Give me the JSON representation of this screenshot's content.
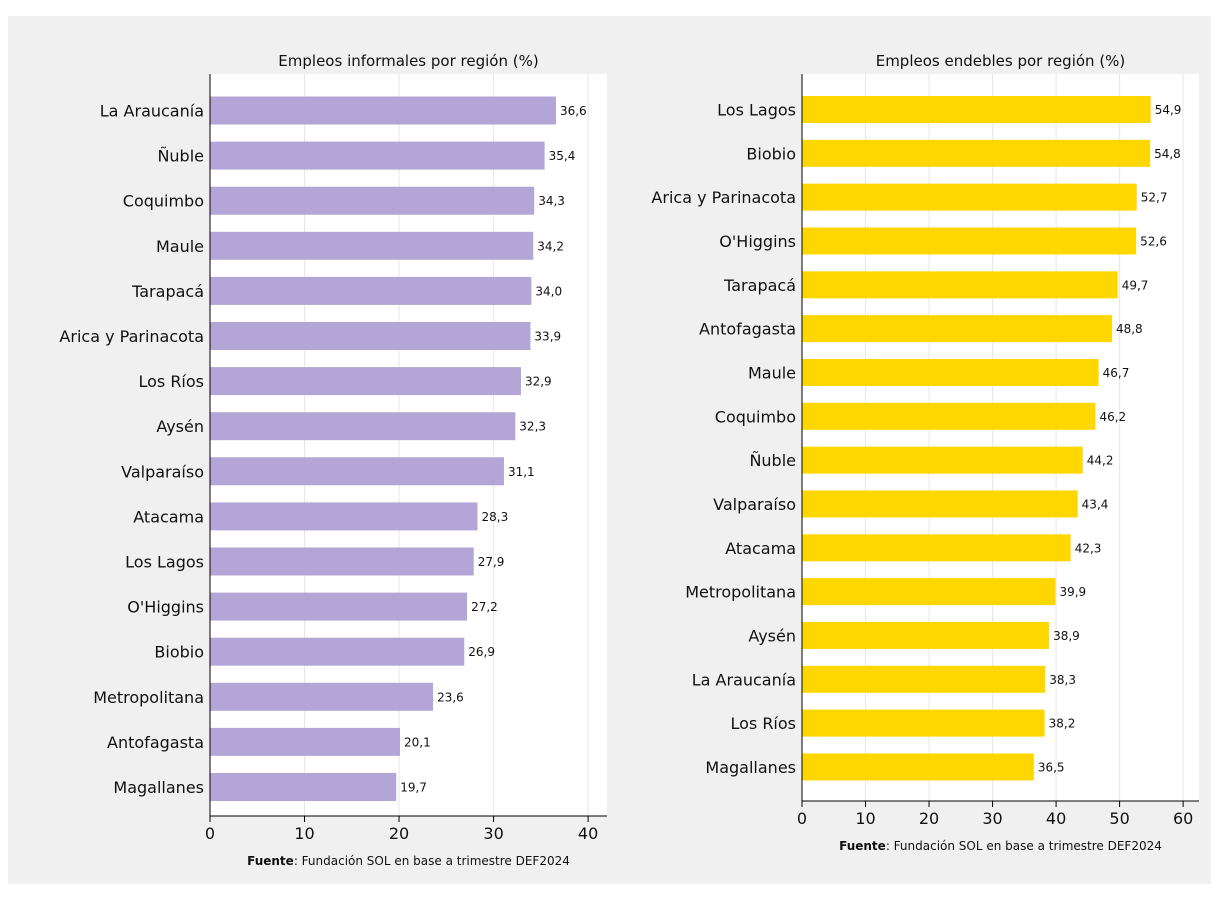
{
  "source_note": {
    "bold": "Fuente",
    "text": ": Fundación SOL en base a trimestre DEF2024"
  },
  "chart_data": [
    {
      "type": "bar",
      "orientation": "horizontal",
      "title": "Empleos informales por región (%)",
      "xlabel": "",
      "ylabel": "",
      "color": "#b3a6d6",
      "xlim": [
        0,
        42
      ],
      "xticks": [
        0,
        10,
        20,
        30,
        40
      ],
      "grid": true,
      "categories": [
        "La Araucanía",
        "Ñuble",
        "Coquimbo",
        "Maule",
        "Tarapacá",
        "Arica y Parinacota",
        "Los Ríos",
        "Aysén",
        "Valparaíso",
        "Atacama",
        "Los Lagos",
        "O'Higgins",
        "Biobio",
        "Metropolitana",
        "Antofagasta",
        "Magallanes"
      ],
      "values": [
        36.6,
        35.4,
        34.3,
        34.2,
        34.0,
        33.9,
        32.9,
        32.3,
        31.1,
        28.3,
        27.9,
        27.2,
        26.9,
        23.6,
        20.1,
        19.7
      ],
      "value_labels": [
        "36,6",
        "35,4",
        "34,3",
        "34,2",
        "34,0",
        "33,9",
        "32,9",
        "32,3",
        "31,1",
        "28,3",
        "27,9",
        "27,2",
        "26,9",
        "23,6",
        "20,1",
        "19,7"
      ]
    },
    {
      "type": "bar",
      "orientation": "horizontal",
      "title": "Empleos endebles por región (%)",
      "xlabel": "",
      "ylabel": "",
      "color": "#ffd700",
      "xlim": [
        0,
        62.5
      ],
      "xticks": [
        0,
        10,
        20,
        30,
        40,
        50,
        60
      ],
      "grid": true,
      "categories": [
        "Los Lagos",
        "Biobio",
        "Arica y Parinacota",
        "O'Higgins",
        "Tarapacá",
        "Antofagasta",
        "Maule",
        "Coquimbo",
        "Ñuble",
        "Valparaíso",
        "Atacama",
        "Metropolitana",
        "Aysén",
        "La Araucanía",
        "Los Ríos",
        "Magallanes"
      ],
      "values": [
        54.9,
        54.8,
        52.7,
        52.6,
        49.7,
        48.8,
        46.7,
        46.2,
        44.2,
        43.4,
        42.3,
        39.9,
        38.9,
        38.3,
        38.2,
        36.5
      ],
      "value_labels": [
        "54,9",
        "54,8",
        "52,7",
        "52,6",
        "49,7",
        "48,8",
        "46,7",
        "46,2",
        "44,2",
        "43,4",
        "42,3",
        "39,9",
        "38,9",
        "38,3",
        "38,2",
        "36,5"
      ]
    }
  ]
}
